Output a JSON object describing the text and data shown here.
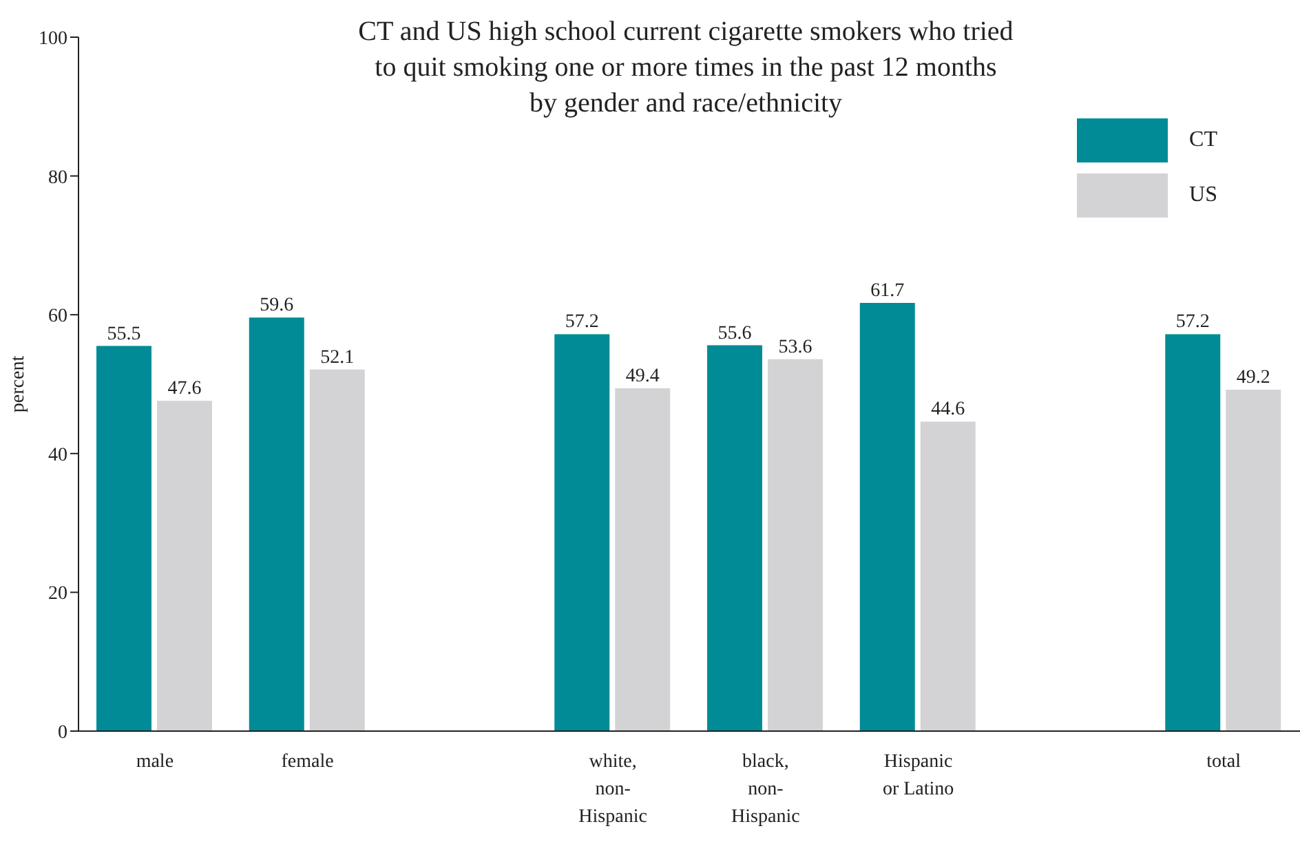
{
  "chart_data": {
    "type": "bar",
    "title": "CT and US high school current cigarette smokers who tried\nto quit smoking one or more times in the past 12 months\nby gender and race/ethnicity",
    "ylabel": "percent",
    "categories": [
      "male",
      "female",
      null,
      "white,\nnon-\nHispanic",
      "black,\nnon-\nHispanic",
      "Hispanic\nor Latino",
      null,
      "total"
    ],
    "series": [
      {
        "name": "CT",
        "color": "#008b96",
        "values": [
          55.5,
          59.6,
          null,
          57.2,
          55.6,
          61.7,
          null,
          57.2
        ]
      },
      {
        "name": "US",
        "color": "#d3d3d5",
        "values": [
          47.6,
          52.1,
          null,
          49.4,
          53.6,
          44.6,
          null,
          49.2
        ]
      }
    ],
    "ylim": [
      0,
      100
    ],
    "yticks": [
      0,
      20,
      40,
      60,
      80,
      100
    ],
    "data_labels": true,
    "legend": "top right",
    "grid": false
  }
}
